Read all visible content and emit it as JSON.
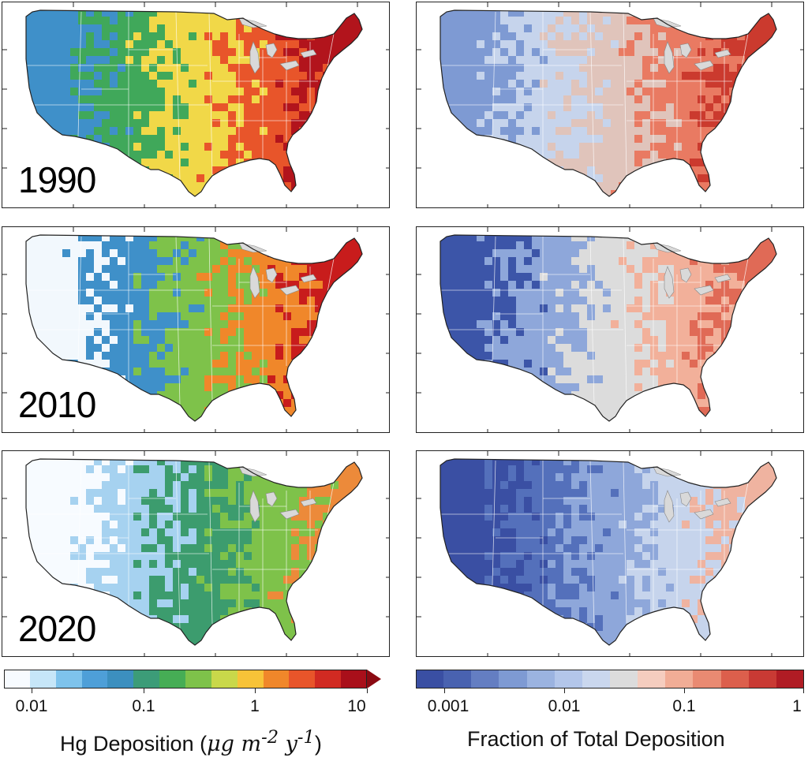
{
  "panels": [
    {
      "year": "1990",
      "column": "deposition",
      "colors": [
        "#3f90c9",
        "#40a85a",
        "#f1d848",
        "#e8552a",
        "#b2141c"
      ]
    },
    {
      "year": "1990",
      "column": "fraction",
      "colors": [
        "#7e9ad3",
        "#c6d4ec",
        "#e0c4bb",
        "#e97a62",
        "#cb3a2e"
      ]
    },
    {
      "year": "2010",
      "column": "deposition",
      "colors": [
        "#f2f8fd",
        "#3f90c9",
        "#7ec24a",
        "#f0872a",
        "#c81c1c"
      ]
    },
    {
      "year": "2010",
      "column": "fraction",
      "colors": [
        "#3c55a8",
        "#8ea7da",
        "#dcdcdc",
        "#f2b09a",
        "#e06a56"
      ]
    },
    {
      "year": "2020",
      "column": "deposition",
      "colors": [
        "#f7fbff",
        "#a6d2f0",
        "#3c9c6e",
        "#7ec24a",
        "#ec8a3a"
      ]
    },
    {
      "year": "2020",
      "column": "fraction",
      "colors": [
        "#3a4fa3",
        "#5470bb",
        "#8ea7da",
        "#c6d4ec",
        "#efb3a0"
      ]
    }
  ],
  "colorbars": [
    {
      "id": "hg-deposition",
      "colors": [
        "#f7fbff",
        "#c6e6f8",
        "#7ec3ec",
        "#4e9fd8",
        "#3c8fbf",
        "#3c9c78",
        "#46ad55",
        "#7ec24a",
        "#c9d84a",
        "#f7c338",
        "#f0872a",
        "#e8552a",
        "#d12a22",
        "#a90f1a"
      ],
      "extend_color": "#8b0a12",
      "ticks": [
        "0.01",
        "0.1",
        "1",
        "10"
      ],
      "title_main": "Hg Deposition (",
      "title_unit": "μg m",
      "title_exp1": "-2",
      "title_mid": " y",
      "title_exp2": "-1",
      "title_end": ")"
    },
    {
      "id": "fraction-total",
      "colors": [
        "#3a4fa3",
        "#4962b0",
        "#647ec2",
        "#7e9ad3",
        "#9bb3e0",
        "#b3c6ea",
        "#cad7ee",
        "#dcdcdc",
        "#f5cdbf",
        "#f1ad96",
        "#e98a72",
        "#dc5f4c",
        "#c93a34",
        "#b01c24"
      ],
      "ticks": [
        "0.001",
        "0.01",
        "0.1",
        "1"
      ],
      "title": "Fraction of Total Deposition"
    }
  ]
}
